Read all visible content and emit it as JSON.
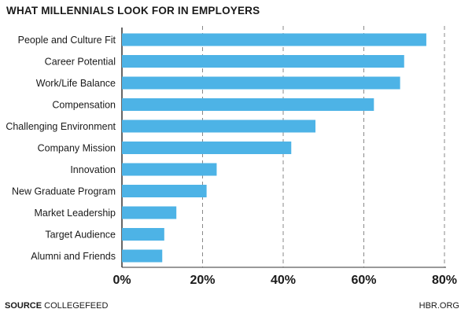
{
  "title": "WHAT MILLENNIALS LOOK FOR IN EMPLOYERS",
  "footer": {
    "source_label": "SOURCE",
    "source_value": "COLLEGEFEED",
    "credit": "HBR.ORG"
  },
  "colors": {
    "bar": "#4db3e6",
    "grid": "#888888",
    "axis": "#333333",
    "text": "#1a1a1a"
  },
  "chart_data": {
    "type": "bar",
    "orientation": "horizontal",
    "title": "WHAT MILLENNIALS LOOK FOR IN EMPLOYERS",
    "categories": [
      "People and Culture Fit",
      "Career Potential",
      "Work/Life Balance",
      "Compensation",
      "Challenging Environment",
      "Company Mission",
      "Innovation",
      "New Graduate Program",
      "Market Leadership",
      "Target Audience",
      "Alumni and Friends"
    ],
    "values": [
      75.5,
      70,
      69,
      62.5,
      48,
      42,
      23.5,
      21,
      13.5,
      10.5,
      10
    ],
    "xlim": [
      0,
      80
    ],
    "x_ticks": [
      0,
      20,
      40,
      60,
      80
    ],
    "x_tick_labels": [
      "0%",
      "20%",
      "40%",
      "60%",
      "80%"
    ],
    "grid": "vertical dashed",
    "legend": "none"
  }
}
